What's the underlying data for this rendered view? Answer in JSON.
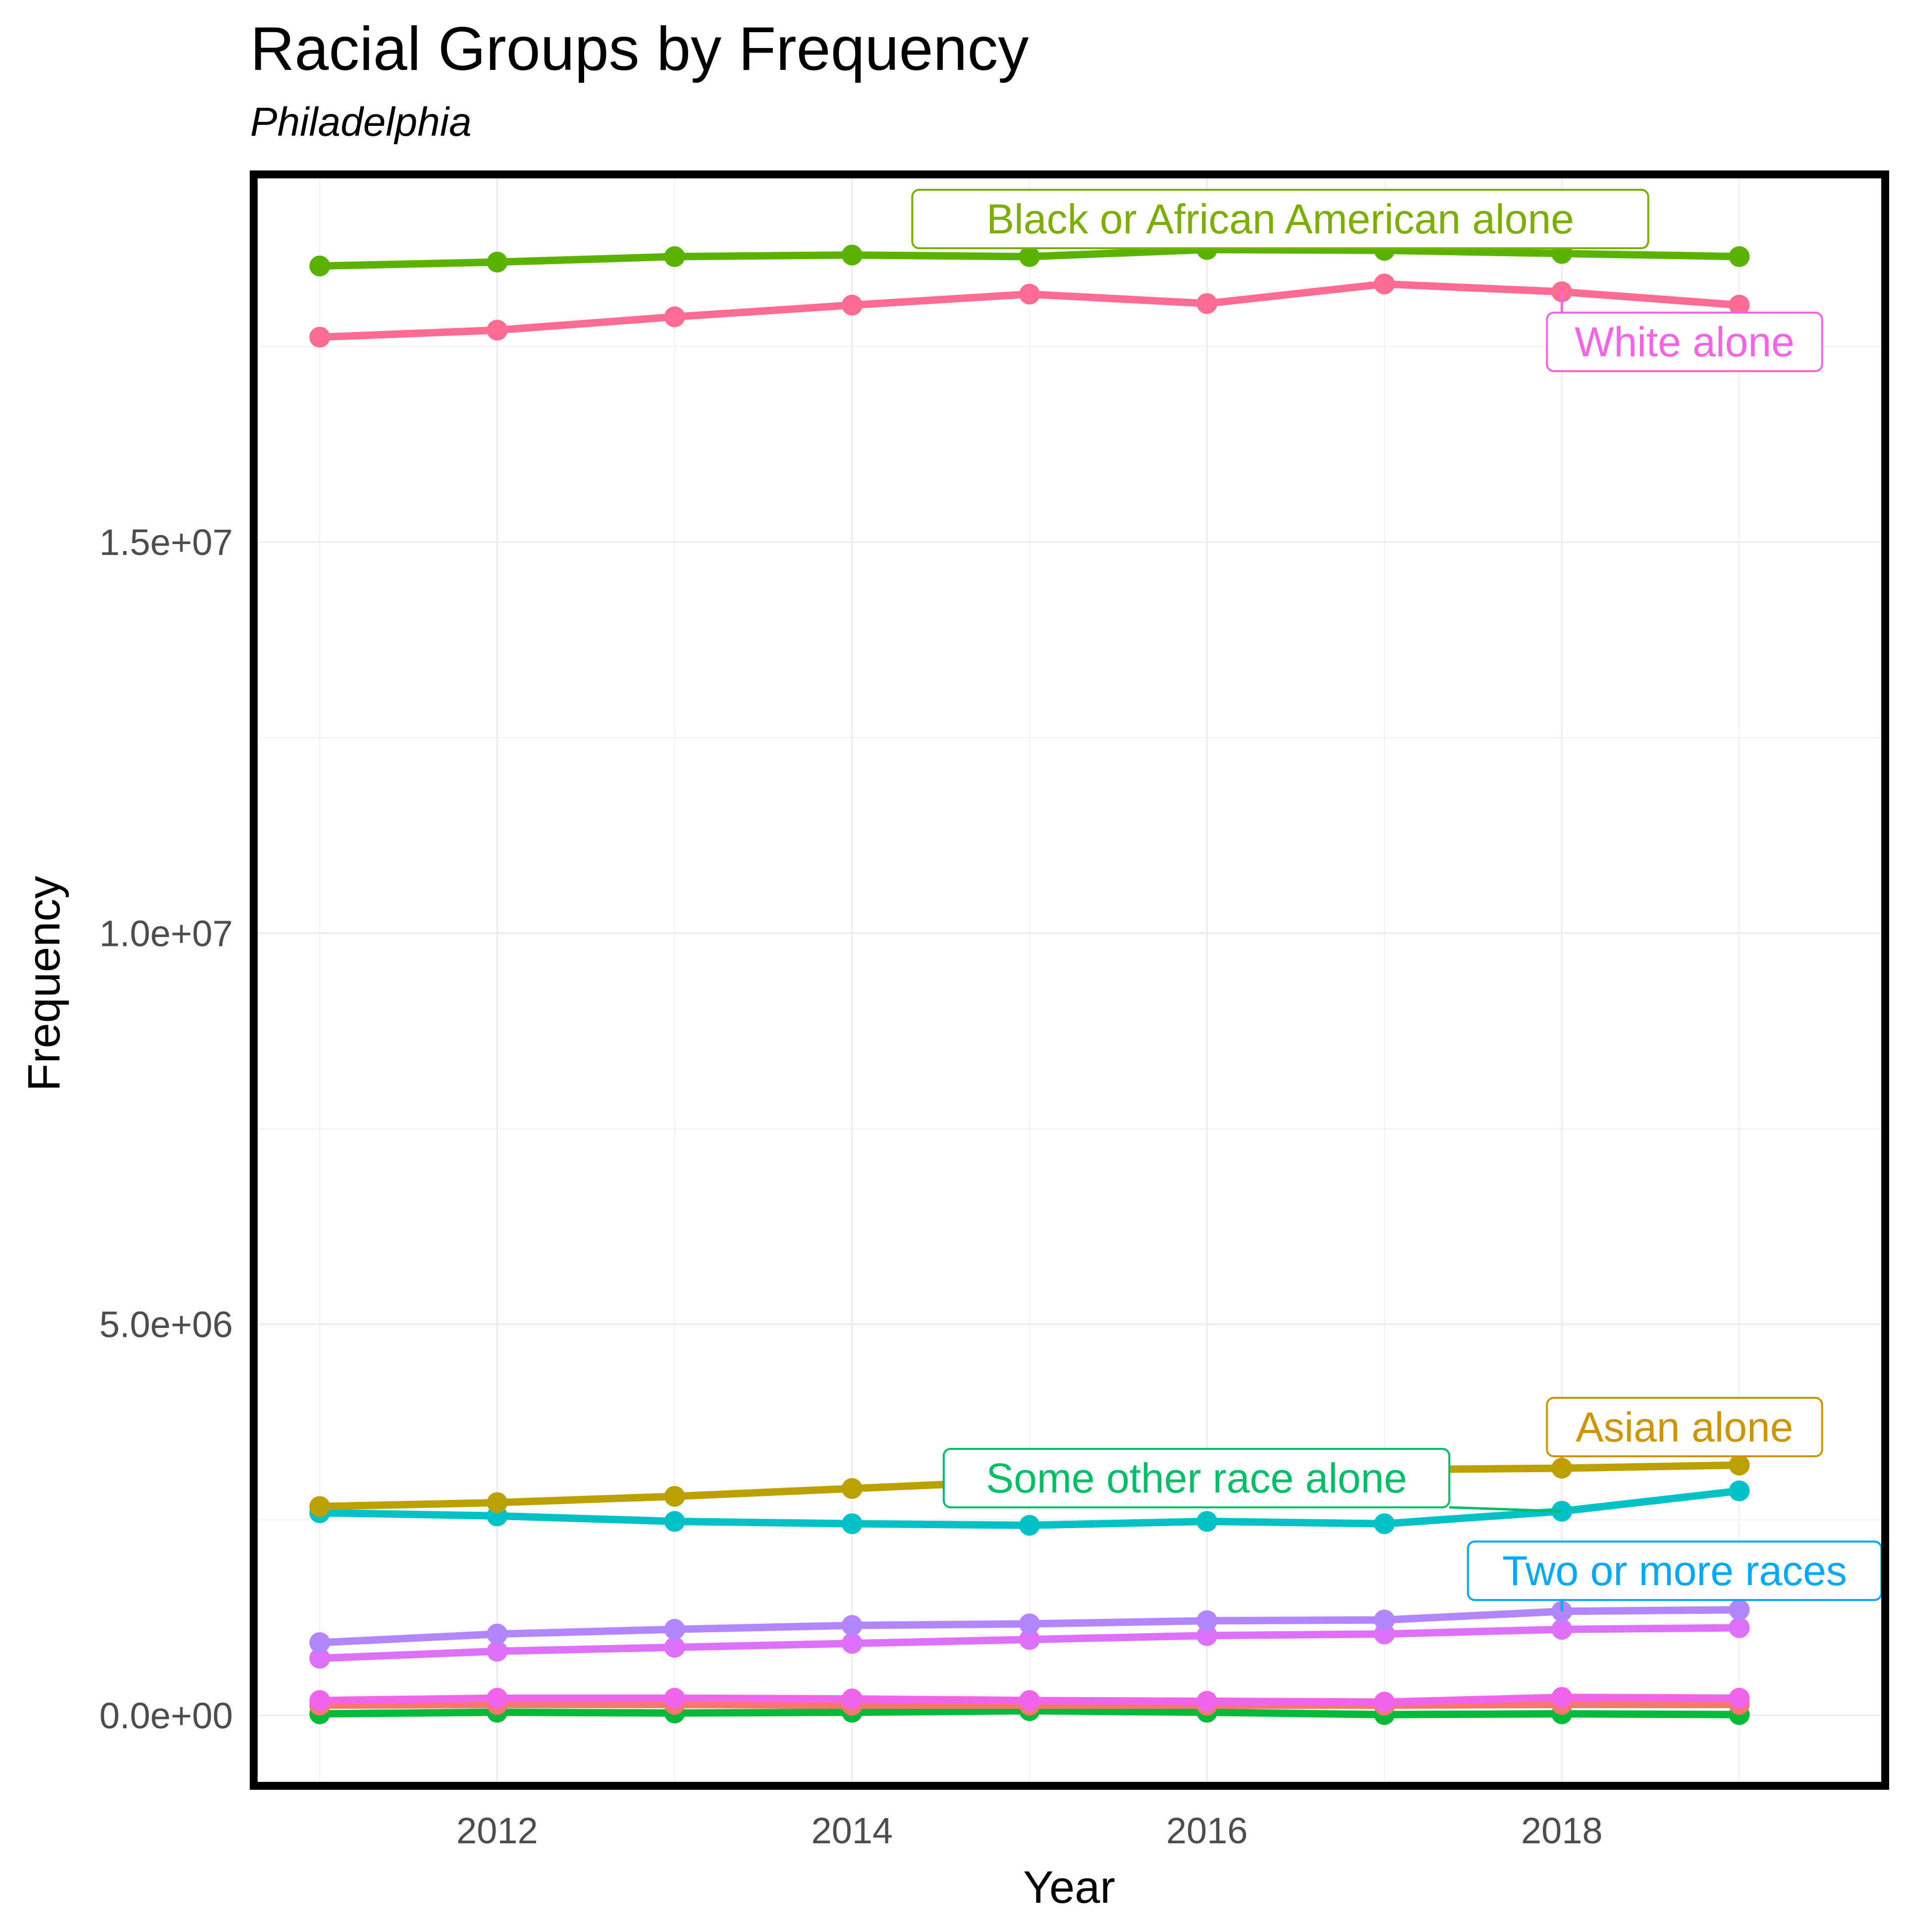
{
  "title": "Racial Groups by Frequency",
  "subtitle": "Philadelphia",
  "chart_data": {
    "type": "line",
    "title": "Racial Groups by Frequency",
    "subtitle": "Philadelphia",
    "xlabel": "Year",
    "ylabel": "Frequency",
    "x": [
      2011,
      2012,
      2013,
      2014,
      2015,
      2016,
      2017,
      2018,
      2019
    ],
    "xlim": [
      2010.65,
      2019.8
    ],
    "ylim": [
      -850000,
      19650000
    ],
    "x_ticks": [
      2012,
      2014,
      2016,
      2018
    ],
    "x_tick_labels": [
      "2012",
      "2014",
      "2016",
      "2018"
    ],
    "y_ticks": [
      0,
      5000000,
      10000000,
      15000000
    ],
    "y_tick_labels": [
      "0.0e+00",
      "5.0e+06",
      "1.0e+07",
      "1.5e+07"
    ],
    "grid": true,
    "legend": "none (direct labels)",
    "series": [
      {
        "name": "Black or African American alone",
        "color": "#5BB300",
        "label_color": "#7CAE00",
        "labeled": true,
        "values": [
          18530000,
          18580000,
          18650000,
          18670000,
          18650000,
          18740000,
          18730000,
          18690000,
          18650000
        ]
      },
      {
        "name": "White alone",
        "color": "#FF6C91",
        "label_color": "#F564E3",
        "labeled": true,
        "values": [
          17620000,
          17710000,
          17880000,
          18030000,
          18170000,
          18050000,
          18300000,
          18200000,
          18030000
        ]
      },
      {
        "name": "Asian alone",
        "color": "#BBA000",
        "label_color": "#CD9600",
        "labeled": true,
        "values": [
          2670000,
          2720000,
          2800000,
          2900000,
          3000000,
          3060000,
          3140000,
          3160000,
          3200000
        ]
      },
      {
        "name": "Some other race alone",
        "color": "#00C1C6",
        "label_color": "#00BE67",
        "labeled": true,
        "values": [
          2590000,
          2550000,
          2480000,
          2450000,
          2430000,
          2480000,
          2450000,
          2610000,
          2870000
        ]
      },
      {
        "name": "Two or more races",
        "color": "#B385FF",
        "label_color": "#00A9FF",
        "labeled": true,
        "values": [
          930000,
          1040000,
          1100000,
          1150000,
          1170000,
          1210000,
          1220000,
          1330000,
          1350000
        ]
      },
      {
        "name": "",
        "color": "#DE71F9",
        "labeled": false,
        "values": [
          730000,
          820000,
          870000,
          920000,
          970000,
          1020000,
          1040000,
          1100000,
          1120000
        ]
      },
      {
        "name": "",
        "color": "#F066EA",
        "labeled": false,
        "values": [
          190000,
          220000,
          220000,
          210000,
          190000,
          180000,
          170000,
          230000,
          220000
        ]
      },
      {
        "name": "",
        "color": "#F8766D",
        "labeled": false,
        "values": [
          130000,
          140000,
          140000,
          130000,
          130000,
          130000,
          130000,
          140000,
          140000
        ]
      },
      {
        "name": "",
        "color": "#00BA38",
        "labeled": false,
        "values": [
          20000,
          40000,
          30000,
          40000,
          60000,
          40000,
          10000,
          20000,
          10000
        ]
      }
    ]
  }
}
